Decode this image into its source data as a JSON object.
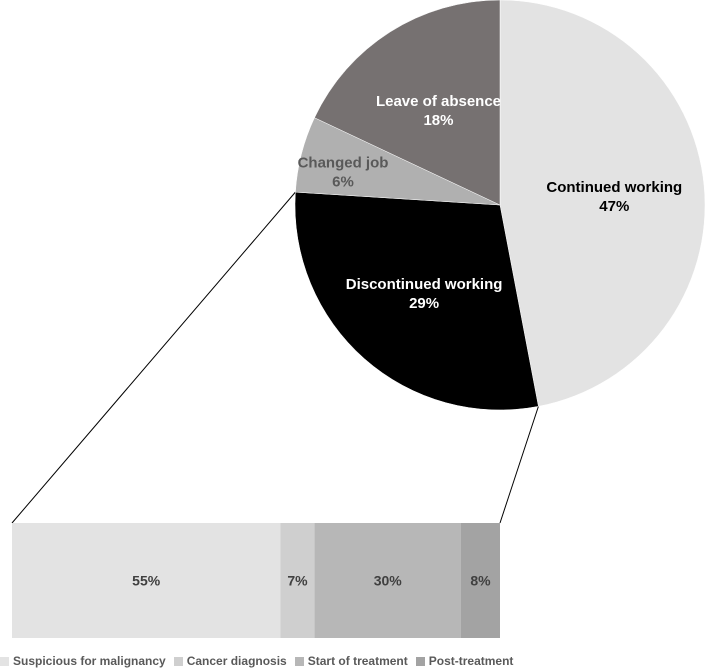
{
  "chart_data": [
    {
      "type": "pie",
      "slices": [
        {
          "label": "Continued working",
          "value": 47,
          "value_label": "47%",
          "color": "#e3e3e3",
          "text_color": "#000000"
        },
        {
          "label": "Discontinued working",
          "value": 29,
          "value_label": "29%",
          "color": "#000000",
          "text_color": "#ffffff"
        },
        {
          "label": "Changed job",
          "value": 6,
          "value_label": "6%",
          "color": "#b0b0b0",
          "text_color": "#595959"
        },
        {
          "label": "Leave of absence",
          "value": 18,
          "value_label": "18%",
          "color": "#767171",
          "text_color": "#ffffff"
        }
      ],
      "exploded_slice": "Discontinued working"
    },
    {
      "type": "bar",
      "orientation": "horizontal",
      "stacked": true,
      "categories": [
        "Suspicious for malignancy",
        "Cancer diagnosis",
        "Start of treatment",
        "Post-treatment"
      ],
      "values": [
        55,
        7,
        30,
        8
      ],
      "value_labels": [
        "55%",
        "7%",
        "30%",
        "8%"
      ],
      "colors": [
        "#e3e3e3",
        "#cfcfcf",
        "#b7b7b7",
        "#a3a3a3"
      ],
      "legend_position": "bottom"
    }
  ]
}
